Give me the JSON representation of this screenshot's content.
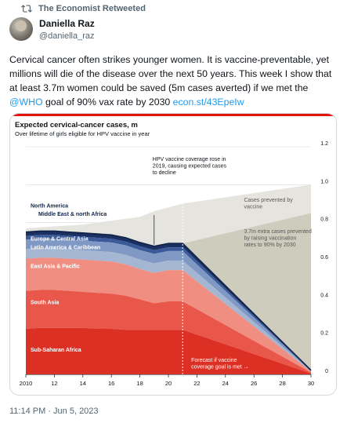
{
  "retweet": {
    "label": "The Economist Retweeted"
  },
  "author": {
    "display_name": "Daniella Raz",
    "handle": "@daniella_raz"
  },
  "tweet": {
    "text_1": "Cervical cancer often strikes younger women. It is vaccine-preventable, yet millions will die of the disease over the next 50 years. This week I show that at least 3.7m women could be saved (5m cases averted) if we met the ",
    "mention": "@WHO",
    "text_2": " goal of 90% vax rate by 2030 ",
    "link": "econ.st/43EpeIw"
  },
  "timestamp": "11:14 PM · Jun 5, 2023",
  "colors": {
    "brand_red": "#e3120b",
    "sub_saharan": "#db3023",
    "south_asia": "#e9574b",
    "east_asia": "#f08e82",
    "latin_america": "#a4b6d2",
    "europe": "#7f98c4",
    "mena": "#3b5a99",
    "north_america": "#1b3164",
    "prevented_by_vaccine": "#e6e4de",
    "extra_prevented": "#cdccbd",
    "link": "#1d9bf0"
  },
  "chart_data": {
    "type": "area",
    "title": "Expected cervical-cancer cases, m",
    "subtitle": "Over lifetime of girls eligible for HPV vaccine in year",
    "x_ticks": [
      "2010",
      "12",
      "14",
      "16",
      "18",
      "20",
      "22",
      "24",
      "26",
      "28",
      "30"
    ],
    "x": [
      2010,
      2011,
      2012,
      2013,
      2014,
      2015,
      2016,
      2017,
      2018,
      2019,
      2020,
      2021,
      2030
    ],
    "y_ticks": [
      "0",
      "0.2",
      "0.4",
      "0.6",
      "0.8",
      "1.0",
      "1.2"
    ],
    "ylim": [
      0,
      1.2
    ],
    "stacked": true,
    "series": [
      {
        "name": "Sub-Saharan Africa",
        "values": [
          0.24,
          0.245,
          0.245,
          0.245,
          0.245,
          0.24,
          0.24,
          0.235,
          0.235,
          0.235,
          0.235,
          0.235,
          0.005
        ]
      },
      {
        "name": "South Asia",
        "values": [
          0.2,
          0.2,
          0.2,
          0.195,
          0.19,
          0.19,
          0.185,
          0.18,
          0.16,
          0.14,
          0.15,
          0.15,
          0.005
        ]
      },
      {
        "name": "East Asia & Pacific",
        "values": [
          0.17,
          0.17,
          0.17,
          0.17,
          0.17,
          0.17,
          0.17,
          0.165,
          0.16,
          0.16,
          0.165,
          0.165,
          0.005
        ]
      },
      {
        "name": "Latin America & Caribbean",
        "values": [
          0.05,
          0.05,
          0.05,
          0.05,
          0.05,
          0.05,
          0.05,
          0.05,
          0.05,
          0.05,
          0.05,
          0.05,
          0.002
        ]
      },
      {
        "name": "Europe & Central Asia",
        "values": [
          0.05,
          0.05,
          0.05,
          0.05,
          0.05,
          0.05,
          0.05,
          0.05,
          0.05,
          0.05,
          0.05,
          0.05,
          0.002
        ]
      },
      {
        "name": "Middle East & north Africa",
        "values": [
          0.02,
          0.02,
          0.02,
          0.02,
          0.02,
          0.02,
          0.02,
          0.02,
          0.02,
          0.02,
          0.02,
          0.02,
          0.001
        ]
      },
      {
        "name": "North America",
        "values": [
          0.02,
          0.02,
          0.02,
          0.02,
          0.02,
          0.02,
          0.02,
          0.02,
          0.02,
          0.02,
          0.02,
          0.02,
          0.001
        ]
      }
    ],
    "cases_prevented_upper": {
      "x": [
        2010,
        2014,
        2018,
        2019,
        2021,
        2030
      ],
      "values": [
        0.77,
        0.79,
        0.83,
        0.86,
        0.9,
        1.0
      ]
    },
    "forecast_start": 2021,
    "annotations": {
      "coverage_rose": "HPV vaccine coverage rose in 2019, causing expected cases to decline",
      "cases_prevented": "Cases prevented by vaccine",
      "extra_cases": "3.7m extra cases prevented by raising vaccination rates to 90% by 2030",
      "forecast": "Forecast if vaccine coverage goal is met →"
    }
  }
}
